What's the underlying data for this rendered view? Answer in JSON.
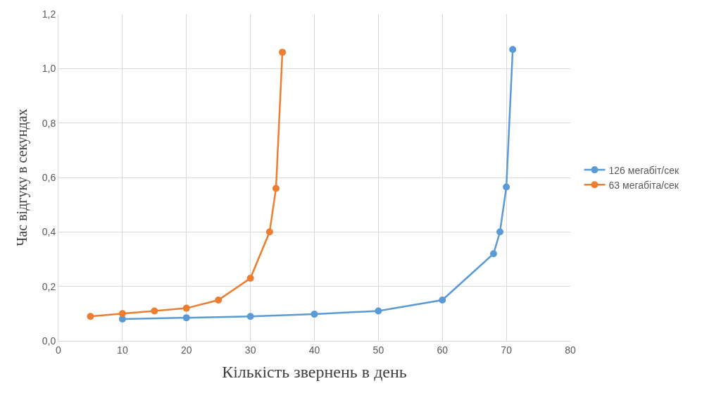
{
  "chart_data": {
    "type": "line",
    "xlabel": "Кількість звернень в день",
    "ylabel": "Час відгуку в секундах",
    "series": [
      {
        "name": "126 мегабіт/сек",
        "color": "#5b9bd5",
        "x": [
          10,
          20,
          30,
          40,
          50,
          60,
          68,
          69,
          70,
          71
        ],
        "values": [
          0.08,
          0.085,
          0.09,
          0.098,
          0.11,
          0.15,
          0.32,
          0.4,
          0.565,
          1.07
        ]
      },
      {
        "name": "63 мегабіта/сек",
        "color": "#ed7d31",
        "x": [
          5,
          10,
          15,
          20,
          25,
          30,
          33,
          34,
          35
        ],
        "values": [
          0.09,
          0.1,
          0.11,
          0.12,
          0.15,
          0.23,
          0.4,
          0.56,
          1.06
        ]
      }
    ],
    "xlim": [
      0,
      80
    ],
    "xticks": [
      0,
      10,
      20,
      30,
      40,
      50,
      60,
      70,
      80
    ],
    "ylim": [
      0,
      1.2
    ],
    "yticks": [
      {
        "value": 0,
        "label": "0,0"
      },
      {
        "value": 0.2,
        "label": "0,2"
      },
      {
        "value": 0.4,
        "label": "0,4"
      },
      {
        "value": 0.6,
        "label": "0,6"
      },
      {
        "value": 0.8,
        "label": "0,8"
      },
      {
        "value": 1.0,
        "label": "1,0"
      },
      {
        "value": 1.2,
        "label": "1,2"
      }
    ],
    "grid": true,
    "legend": "right",
    "marker": "circle",
    "line_style": "solid"
  }
}
